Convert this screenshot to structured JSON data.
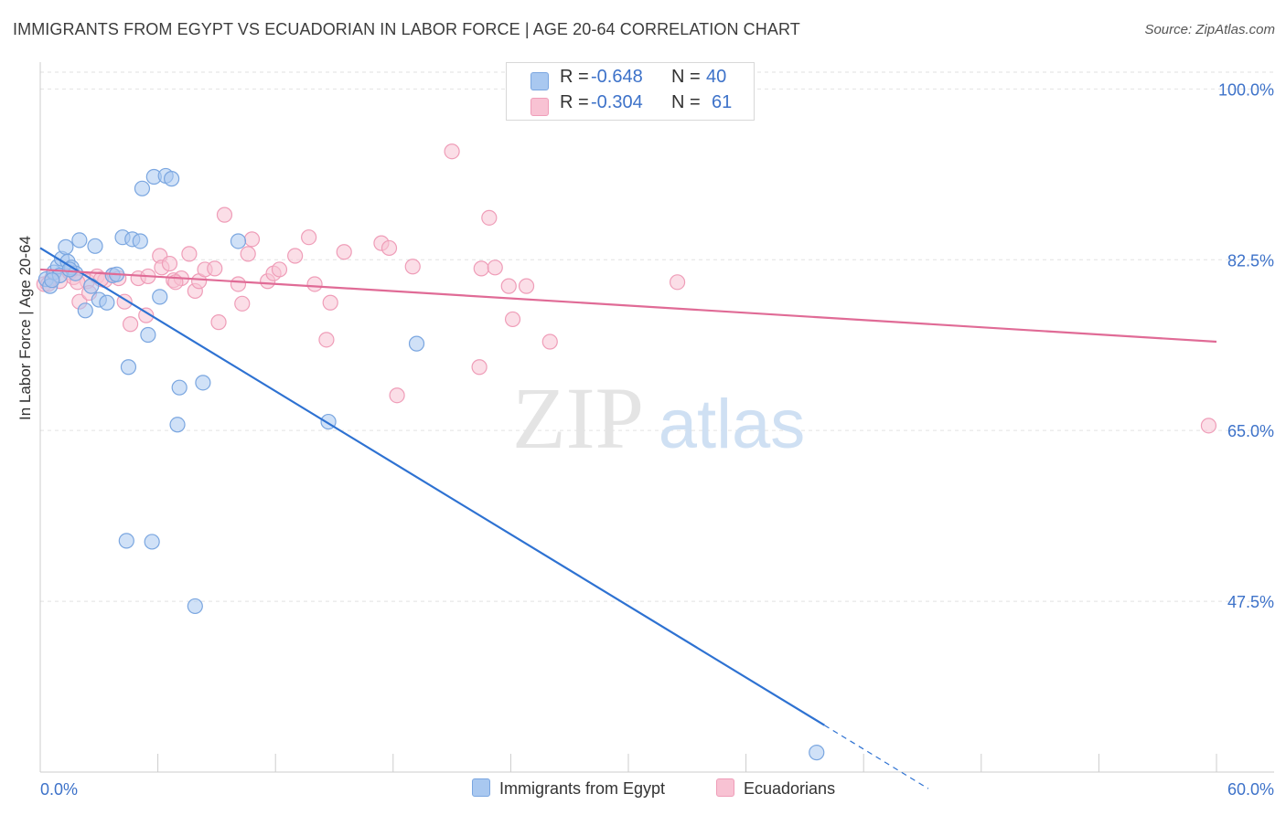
{
  "title": "IMMIGRANTS FROM EGYPT VS ECUADORIAN IN LABOR FORCE | AGE 20-64 CORRELATION CHART",
  "source": "Source: ZipAtlas.com",
  "watermark": {
    "zip": "ZIP",
    "atlas": "atlas"
  },
  "legend": {
    "r_label": "R =",
    "n_label": "N =",
    "series": [
      {
        "r": "-0.648",
        "n": "40",
        "color": "#a9c8f0",
        "border": "#7aa6e0"
      },
      {
        "r": "-0.304",
        "n": "61",
        "color": "#f8c2d3",
        "border": "#ef9db8"
      }
    ]
  },
  "colors": {
    "blue_line": "#2e72d2",
    "pink_line": "#e06b96",
    "axis_label": "#3d72c9"
  },
  "chart_data": {
    "type": "scatter",
    "title": "IMMIGRANTS FROM EGYPT VS ECUADORIAN IN LABOR FORCE | AGE 20-64 CORRELATION CHART",
    "xlabel": "",
    "ylabel": "In Labor Force | Age 20-64",
    "xlim": [
      0,
      60
    ],
    "ylim": [
      30,
      102
    ],
    "x_tick_labels": [
      "0.0%",
      "60.0%"
    ],
    "y_ticks": [
      47.5,
      65.0,
      82.5,
      100.0
    ],
    "y_tick_labels": [
      "47.5%",
      "65.0%",
      "82.5%",
      "100.0%"
    ],
    "grid": true,
    "legend_position": "top-center",
    "series": [
      {
        "name": "Immigrants from Egypt",
        "color": "#a9c8f0",
        "points": [
          [
            0.3,
            80.5
          ],
          [
            0.5,
            79.8
          ],
          [
            0.7,
            81.2
          ],
          [
            0.9,
            81.8
          ],
          [
            1.0,
            80.9
          ],
          [
            1.1,
            82.6
          ],
          [
            1.3,
            83.8
          ],
          [
            1.4,
            82.3
          ],
          [
            1.6,
            81.7
          ],
          [
            1.8,
            81.1
          ],
          [
            2.0,
            84.5
          ],
          [
            2.3,
            77.3
          ],
          [
            2.6,
            79.8
          ],
          [
            2.8,
            83.9
          ],
          [
            3.0,
            78.4
          ],
          [
            3.4,
            78.1
          ],
          [
            3.7,
            80.9
          ],
          [
            4.2,
            84.8
          ],
          [
            4.7,
            84.6
          ],
          [
            5.1,
            84.4
          ],
          [
            5.2,
            89.8
          ],
          [
            5.5,
            74.8
          ],
          [
            5.8,
            91.0
          ],
          [
            6.1,
            78.7
          ],
          [
            6.4,
            91.1
          ],
          [
            6.7,
            90.8
          ],
          [
            4.5,
            71.5
          ],
          [
            7.1,
            69.4
          ],
          [
            7.0,
            65.6
          ],
          [
            8.3,
            69.9
          ],
          [
            10.1,
            84.4
          ],
          [
            14.7,
            65.9
          ],
          [
            19.2,
            73.9
          ],
          [
            4.4,
            53.7
          ],
          [
            5.7,
            53.6
          ],
          [
            7.9,
            47.0
          ],
          [
            39.6,
            32.0
          ],
          [
            1.5,
            81.5
          ],
          [
            0.6,
            80.4
          ],
          [
            3.9,
            81.0
          ]
        ],
        "trend": {
          "x0": 0,
          "y0": 83.7,
          "x1": 40.0,
          "y1": 34.8,
          "dash_x1": 45.3,
          "dash_y1": 28.3
        }
      },
      {
        "name": "Ecuadorians",
        "color": "#f8c2d3",
        "points": [
          [
            0.2,
            80.0
          ],
          [
            0.6,
            80.6
          ],
          [
            1.0,
            80.3
          ],
          [
            1.5,
            81.2
          ],
          [
            1.7,
            80.7
          ],
          [
            2.0,
            78.2
          ],
          [
            2.4,
            80.3
          ],
          [
            2.5,
            79.1
          ],
          [
            2.9,
            80.8
          ],
          [
            3.3,
            80.4
          ],
          [
            3.7,
            80.9
          ],
          [
            4.3,
            78.2
          ],
          [
            4.6,
            75.9
          ],
          [
            5.0,
            80.6
          ],
          [
            5.4,
            76.8
          ],
          [
            5.5,
            80.8
          ],
          [
            6.1,
            82.9
          ],
          [
            6.2,
            81.7
          ],
          [
            6.6,
            82.1
          ],
          [
            6.8,
            80.4
          ],
          [
            7.2,
            80.6
          ],
          [
            7.6,
            83.1
          ],
          [
            7.9,
            79.3
          ],
          [
            8.1,
            80.3
          ],
          [
            8.4,
            81.5
          ],
          [
            8.9,
            81.6
          ],
          [
            9.1,
            76.1
          ],
          [
            9.4,
            87.1
          ],
          [
            10.1,
            80.0
          ],
          [
            10.3,
            78.0
          ],
          [
            10.6,
            83.1
          ],
          [
            10.8,
            84.6
          ],
          [
            11.6,
            80.3
          ],
          [
            11.9,
            81.1
          ],
          [
            12.2,
            81.5
          ],
          [
            13.0,
            82.9
          ],
          [
            13.7,
            84.8
          ],
          [
            14.0,
            80.0
          ],
          [
            14.6,
            74.3
          ],
          [
            14.8,
            78.1
          ],
          [
            15.5,
            83.3
          ],
          [
            17.4,
            84.2
          ],
          [
            17.8,
            83.7
          ],
          [
            18.2,
            68.6
          ],
          [
            19.0,
            81.8
          ],
          [
            21.0,
            93.6
          ],
          [
            22.4,
            71.5
          ],
          [
            22.5,
            81.6
          ],
          [
            22.9,
            86.8
          ],
          [
            23.2,
            81.7
          ],
          [
            23.9,
            79.8
          ],
          [
            24.1,
            76.4
          ],
          [
            24.8,
            79.8
          ],
          [
            26.0,
            74.1
          ],
          [
            32.5,
            80.2
          ],
          [
            59.6,
            65.5
          ],
          [
            0.4,
            80.0
          ],
          [
            1.9,
            80.2
          ],
          [
            3.1,
            80.5
          ],
          [
            4.0,
            80.6
          ],
          [
            6.9,
            80.2
          ]
        ],
        "trend": {
          "x0": 0,
          "y0": 81.5,
          "x1": 60.0,
          "y1": 74.1
        }
      }
    ]
  }
}
